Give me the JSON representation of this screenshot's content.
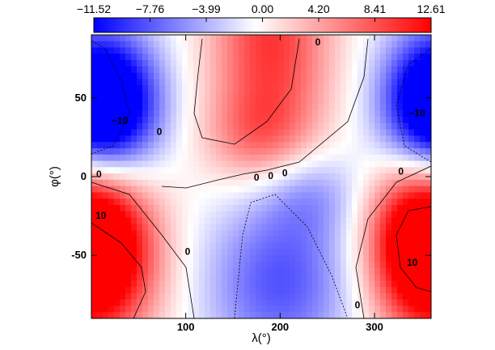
{
  "chart_data": {
    "type": "heatmap",
    "title": "",
    "xlabel": "λ(°)",
    "ylabel": "φ(°)",
    "xlim": [
      0,
      360
    ],
    "ylim": [
      -90,
      90
    ],
    "x_ticks": [
      100,
      200,
      300
    ],
    "y_ticks": [
      -50,
      0,
      50
    ],
    "colorbar": {
      "orientation": "horizontal",
      "placement": "top",
      "range": [
        -11.52,
        12.61
      ],
      "tick_labels": [
        "−11.52",
        "−7.76",
        "−3.99",
        "0.00",
        "4.20",
        "8.41",
        "12.61"
      ],
      "tick_values": [
        -11.52,
        -7.76,
        -3.99,
        0.0,
        4.2,
        8.41,
        12.61
      ],
      "colors": {
        "low": "#0000ff",
        "mid": "#ffffff",
        "high": "#ff0000"
      }
    },
    "field_features": [
      {
        "name": "blue-northwest",
        "lon": 25,
        "lat": 45,
        "sigma_lon": 38,
        "sigma_lat": 32,
        "value": -11
      },
      {
        "name": "blue-northeast",
        "lon": 355,
        "lat": 45,
        "sigma_lon": 38,
        "sigma_lat": 32,
        "value": -11
      },
      {
        "name": "red-north-center",
        "lon": 190,
        "lat": 85,
        "sigma_lon": 45,
        "sigma_lat": 55,
        "value": 10
      },
      {
        "name": "red-southwest",
        "lon": 10,
        "lat": -50,
        "sigma_lon": 45,
        "sigma_lat": 40,
        "value": 12
      },
      {
        "name": "red-southeast",
        "lon": 350,
        "lat": -40,
        "sigma_lon": 40,
        "sigma_lat": 35,
        "value": 12
      },
      {
        "name": "blue-south-center",
        "lon": 200,
        "lat": -65,
        "sigma_lon": 55,
        "sigma_lat": 40,
        "value": -8
      },
      {
        "name": "blue-equator-central",
        "lon": 230,
        "lat": -10,
        "sigma_lon": 40,
        "sigma_lat": 20,
        "value": -4
      },
      {
        "name": "red-equator-center",
        "lon": 175,
        "lat": 25,
        "sigma_lon": 40,
        "sigma_lat": 20,
        "value": 4
      }
    ],
    "contour_labels": [
      {
        "text": "−10",
        "lon": 30,
        "lat": 35
      },
      {
        "text": "−10",
        "lon": 345,
        "lat": 40
      },
      {
        "text": "0",
        "lon": 72,
        "lat": 28
      },
      {
        "text": "0",
        "lon": 8,
        "lat": 1
      },
      {
        "text": "10",
        "lon": 10,
        "lat": -25
      },
      {
        "text": "0",
        "lon": 240,
        "lat": 85
      },
      {
        "text": "0",
        "lon": 175,
        "lat": -1
      },
      {
        "text": "0",
        "lon": 190,
        "lat": 0
      },
      {
        "text": "0",
        "lon": 205,
        "lat": 2
      },
      {
        "text": "0",
        "lon": 328,
        "lat": 3
      },
      {
        "text": "0",
        "lon": 102,
        "lat": -48
      },
      {
        "text": "10",
        "lon": 340,
        "lat": -55
      },
      {
        "text": "0",
        "lon": 282,
        "lat": -82
      }
    ]
  }
}
